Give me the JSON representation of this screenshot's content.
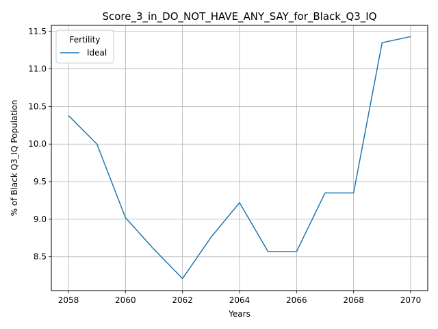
{
  "chart_data": {
    "type": "line",
    "title": "Score_3_in_DO_NOT_HAVE_ANY_SAY_for_Black_Q3_IQ",
    "xlabel": "Years",
    "ylabel": "% of Black Q3_IQ Population",
    "x": [
      2058,
      2059,
      2060,
      2061,
      2062,
      2063,
      2064,
      2065,
      2066,
      2067,
      2068,
      2069,
      2070
    ],
    "series": [
      {
        "name": "Ideal",
        "color": "#1f77b4",
        "values": [
          10.38,
          10.0,
          9.02,
          8.6,
          8.21,
          8.76,
          9.22,
          8.57,
          8.57,
          9.35,
          9.35,
          11.35,
          11.43
        ]
      }
    ],
    "xlim": [
      2057.4,
      2070.6
    ],
    "ylim": [
      8.05,
      11.58
    ],
    "xticks": [
      "2058",
      "2060",
      "2062",
      "2064",
      "2066",
      "2068",
      "2070"
    ],
    "yticks": [
      "8.5",
      "9.0",
      "9.5",
      "10.0",
      "10.5",
      "11.0",
      "11.5"
    ],
    "grid": true,
    "legend": {
      "title": "Fertility",
      "placement": "top-left"
    }
  }
}
